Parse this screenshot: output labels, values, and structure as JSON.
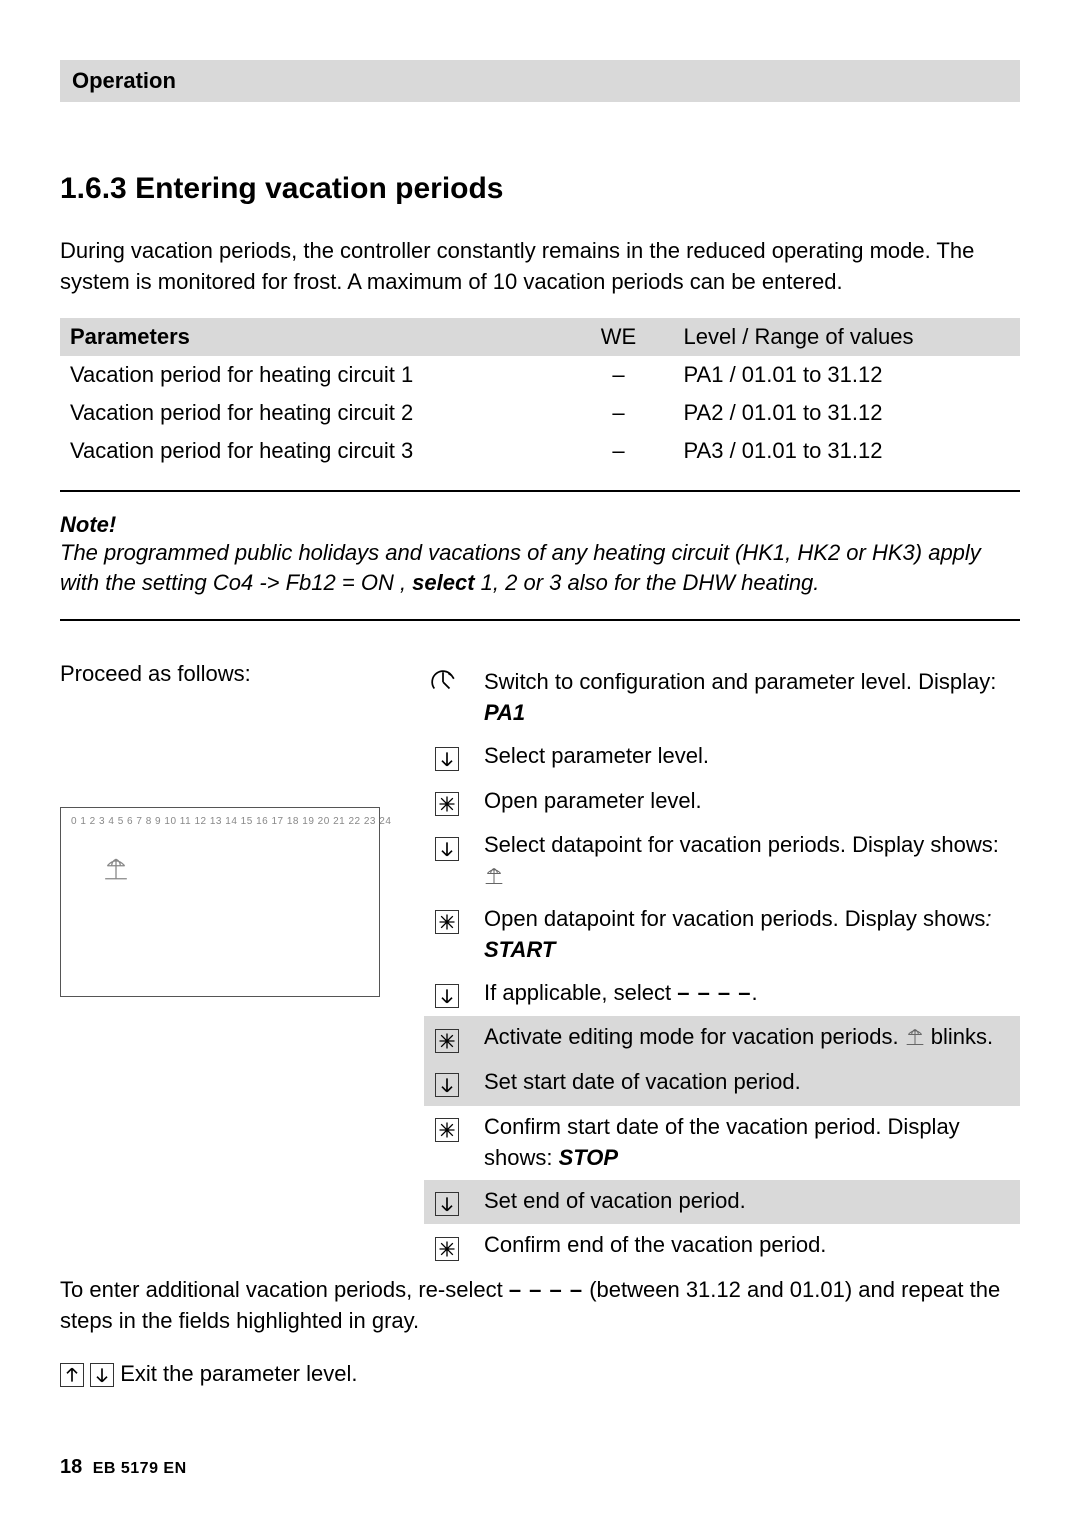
{
  "header": {
    "section": "Operation"
  },
  "section": {
    "number": "1.6.3",
    "title_rest": "Entering vacation periods",
    "intro": "During vacation periods, the controller constantly remains in the reduced operating mode. The system is monitored for frost. A maximum of 10 vacation periods can be entered."
  },
  "params_table": {
    "columns": [
      "Parameters",
      "WE",
      "Level / Range of values"
    ],
    "rows": [
      [
        "Vacation period for heating circuit 1",
        "–",
        "PA1 / 01.01 to 31.12"
      ],
      [
        "Vacation period for heating circuit 2",
        "–",
        "PA2 / 01.01 to 31.12"
      ],
      [
        "Vacation period for heating circuit 3",
        "–",
        "PA3 / 01.01 to 31.12"
      ]
    ]
  },
  "note": {
    "heading": "Note!",
    "body_parts": {
      "a": "The programmed public holidays and vacations of any heating circuit (HK1, HK2 or HK3) apply with the setting Co4 -> Fb12 = ON , ",
      "select": "select",
      "b": " 1, 2 or 3 also for the DHW heating."
    }
  },
  "proceed_label": "Proceed as follows:",
  "display_scale": "0 1 2 3 4 5 6 7 8 9 10 11 12 13 14 15 16 17 18 19 20 21 22 23 24",
  "steps": [
    {
      "icon": "turn",
      "text_a": "Switch to configuration and parameter level. Display: ",
      "bold": "PA1",
      "gray": false
    },
    {
      "icon": "down",
      "text_a": "Select parameter level.",
      "gray": false
    },
    {
      "icon": "press",
      "text_a": "Open parameter level.",
      "gray": false
    },
    {
      "icon": "down",
      "text_a": "Select datapoint for vacation periods. Display shows: ",
      "show_parasol": true,
      "gray": false
    },
    {
      "icon": "press",
      "text_a": "Open datapoint for vacation periods. Display shows",
      "italic_colon": ": ",
      "bold": "START",
      "gray": false
    },
    {
      "icon": "down",
      "text_a": "If applicable, select ",
      "dashes": "– – – –",
      "trail": ".",
      "gray": false
    },
    {
      "icon": "press",
      "text_a": "Activate editing mode for vacation periods. ",
      "show_parasol": true,
      "trail": " blinks.",
      "gray": true
    },
    {
      "icon": "down",
      "text_a": "Set start date of vacation period.",
      "gray": true
    },
    {
      "icon": "press",
      "text_a": "Confirm start date of the vacation period. Display shows: ",
      "bold": "STOP",
      "gray": false
    },
    {
      "icon": "down",
      "text_a": "Set end of vacation period.",
      "gray": true
    },
    {
      "icon": "press",
      "text_a": "Confirm end of the vacation period.",
      "gray": false
    }
  ],
  "closing": {
    "a": "To enter additional vacation periods, re-select ",
    "dashes": "– – – –",
    "b": " (between 31.12 and 01.01) and repeat the steps in the fields highlighted in gray.",
    "exit": " Exit the parameter level."
  },
  "footer": {
    "page": "18",
    "doc": "EB 5179 EN"
  },
  "colors": {
    "header_bg": "#d9d9d9",
    "gray_row": "#d9d9d9",
    "scale_color": "#888888",
    "border_color": "#000000"
  }
}
